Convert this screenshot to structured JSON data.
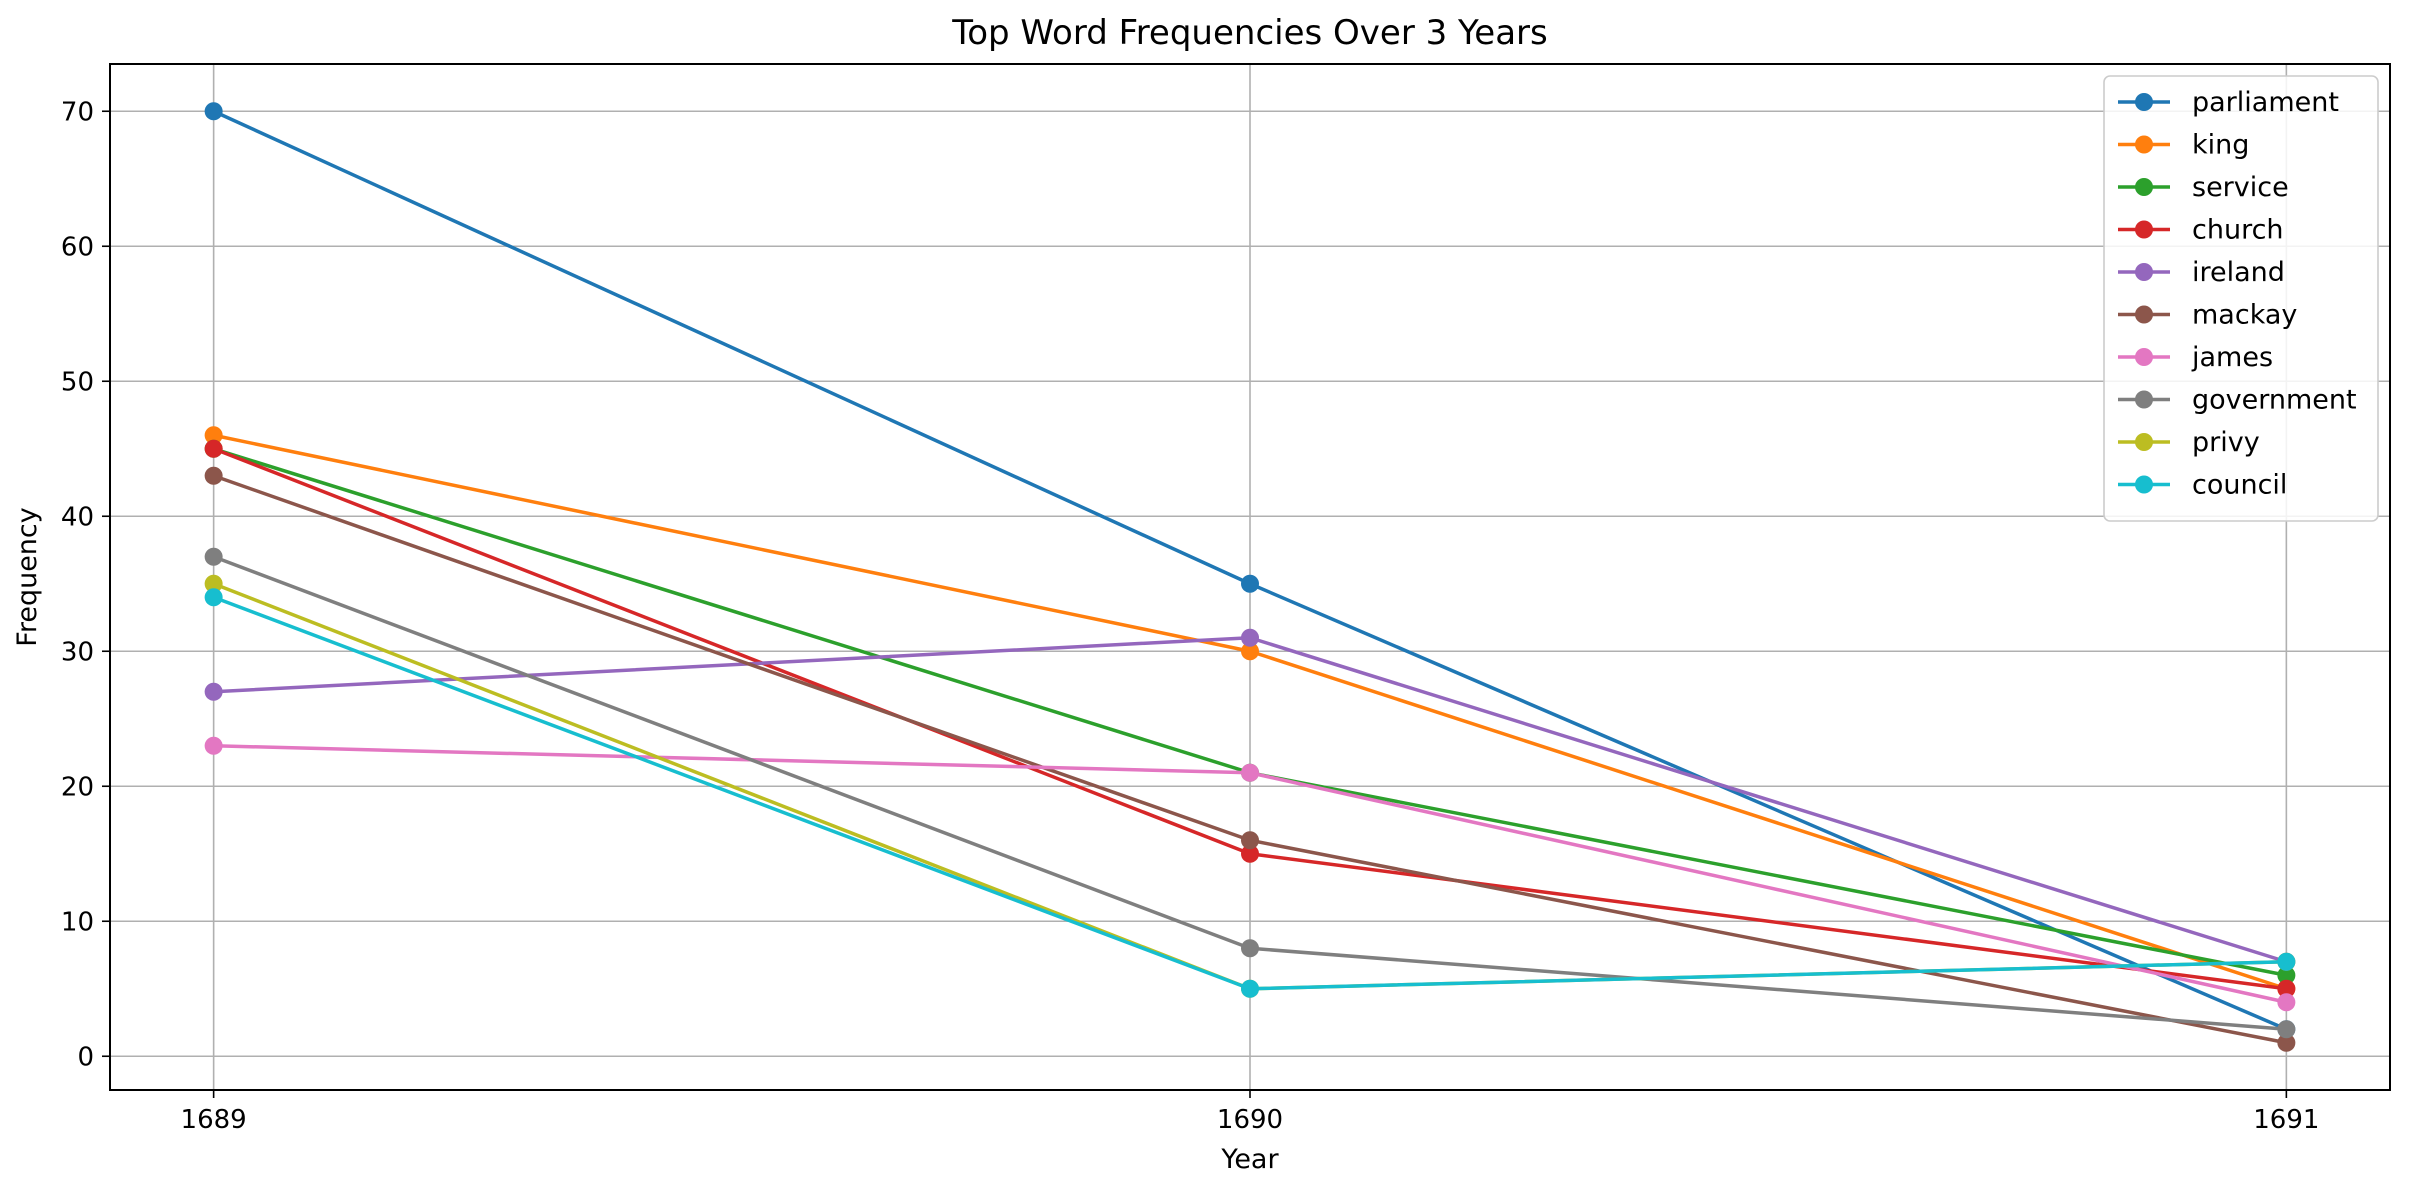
{
  "chart_data": {
    "type": "line",
    "title": "Top Word Frequencies Over 3 Years",
    "xlabel": "Year",
    "ylabel": "Frequency",
    "x": [
      "1689",
      "1690",
      "1691"
    ],
    "xlim": [
      1688.9,
      1691.1
    ],
    "ylim": [
      -2.5,
      73.5
    ],
    "yticks": [
      "0",
      "10",
      "20",
      "30",
      "40",
      "50",
      "60",
      "70"
    ],
    "grid": true,
    "legend_position": "top-right",
    "series": [
      {
        "name": "parliament",
        "color": "#1f77b4",
        "values": [
          70,
          35,
          2
        ]
      },
      {
        "name": "king",
        "color": "#ff7f0e",
        "values": [
          46,
          30,
          5
        ]
      },
      {
        "name": "service",
        "color": "#2ca02c",
        "values": [
          45,
          21,
          6
        ]
      },
      {
        "name": "church",
        "color": "#d62728",
        "values": [
          45,
          15,
          5
        ]
      },
      {
        "name": "ireland",
        "color": "#9467bd",
        "values": [
          27,
          31,
          7
        ]
      },
      {
        "name": "mackay",
        "color": "#8c564b",
        "values": [
          43,
          16,
          1
        ]
      },
      {
        "name": "james",
        "color": "#e377c2",
        "values": [
          23,
          21,
          4
        ]
      },
      {
        "name": "government",
        "color": "#7f7f7f",
        "values": [
          37,
          8,
          2
        ]
      },
      {
        "name": "privy",
        "color": "#bcbd22",
        "values": [
          35,
          5,
          7
        ]
      },
      {
        "name": "council",
        "color": "#17becf",
        "values": [
          34,
          5,
          7
        ]
      }
    ]
  }
}
